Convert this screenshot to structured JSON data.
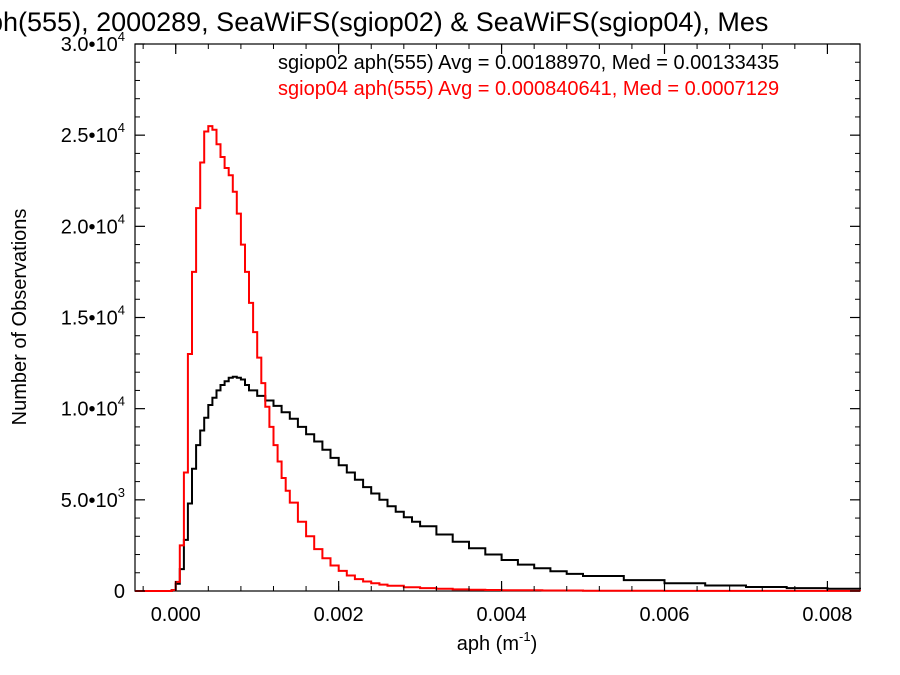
{
  "chart_data": {
    "type": "line",
    "title": "ph(555), 2000289, SeaWiFS(sgiop02) & SeaWiFS(sgiop04), Mes",
    "xlabel": "aph (m",
    "xlabel_sup": "-1",
    "xlabel_suffix": ")",
    "ylabel": "Number of Observations",
    "xlim": [
      -0.0005,
      0.0084
    ],
    "ylim": [
      0,
      30000
    ],
    "grid": false,
    "x_ticks": [
      {
        "value": 0.0,
        "label": "0.000"
      },
      {
        "value": 0.002,
        "label": "0.002"
      },
      {
        "value": 0.004,
        "label": "0.004"
      },
      {
        "value": 0.006,
        "label": "0.006"
      },
      {
        "value": 0.008,
        "label": "0.008"
      }
    ],
    "y_ticks": [
      {
        "value": 0,
        "base": "0",
        "exp": ""
      },
      {
        "value": 5000,
        "base": "5.0•10",
        "exp": "3"
      },
      {
        "value": 10000,
        "base": "1.0•10",
        "exp": "4"
      },
      {
        "value": 15000,
        "base": "1.5•10",
        "exp": "4"
      },
      {
        "value": 20000,
        "base": "2.0•10",
        "exp": "4"
      },
      {
        "value": 25000,
        "base": "2.5•10",
        "exp": "4"
      },
      {
        "value": 30000,
        "base": "3.0•10",
        "exp": "4"
      }
    ],
    "legend": [
      {
        "text": "sgiop02 aph(555) Avg = 0.00188970, Med = 0.00133435",
        "color": "#000000"
      },
      {
        "text": "sgiop04 aph(555) Avg = 0.000840641, Med = 0.0007129",
        "color": "#ff0000"
      }
    ],
    "series": [
      {
        "color": "#000000",
        "x": [
          -0.0005,
          -0.0001,
          -5e-05,
          0.0,
          5e-05,
          0.0001,
          0.00015,
          0.0002,
          0.00025,
          0.0003,
          0.00035,
          0.0004,
          0.00045,
          0.0005,
          0.00055,
          0.0006,
          0.00065,
          0.0007,
          0.00075,
          0.0008,
          0.00085,
          0.0009,
          0.001,
          0.0011,
          0.0012,
          0.0013,
          0.0014,
          0.0015,
          0.0016,
          0.0017,
          0.0018,
          0.0019,
          0.002,
          0.0021,
          0.0022,
          0.0023,
          0.0024,
          0.0025,
          0.0026,
          0.0027,
          0.0028,
          0.0029,
          0.003,
          0.0032,
          0.0034,
          0.0036,
          0.0038,
          0.004,
          0.0042,
          0.0044,
          0.0046,
          0.0048,
          0.005,
          0.0055,
          0.006,
          0.0065,
          0.007,
          0.0075,
          0.008,
          0.0084
        ],
        "y": [
          0,
          0,
          50,
          400,
          1200,
          2800,
          4800,
          6700,
          8000,
          8800,
          9500,
          10200,
          10600,
          11000,
          11300,
          11500,
          11700,
          11750,
          11700,
          11600,
          11300,
          11000,
          10700,
          10450,
          10150,
          9800,
          9450,
          9000,
          8600,
          8200,
          7750,
          7300,
          6900,
          6500,
          6100,
          5700,
          5350,
          5000,
          4650,
          4350,
          4050,
          3800,
          3550,
          3100,
          2700,
          2350,
          2000,
          1700,
          1450,
          1250,
          1080,
          940,
          820,
          600,
          430,
          300,
          220,
          160,
          120,
          100
        ]
      },
      {
        "color": "#ff0000",
        "x": [
          -0.0005,
          -0.0001,
          -5e-05,
          0.0,
          5e-05,
          0.0001,
          0.00015,
          0.0002,
          0.00025,
          0.0003,
          0.00035,
          0.0004,
          0.00045,
          0.0005,
          0.00055,
          0.0006,
          0.00065,
          0.0007,
          0.00075,
          0.0008,
          0.00085,
          0.0009,
          0.00095,
          0.001,
          0.00105,
          0.0011,
          0.00115,
          0.0012,
          0.00125,
          0.0013,
          0.00135,
          0.0014,
          0.0015,
          0.0016,
          0.0017,
          0.0018,
          0.0019,
          0.002,
          0.0021,
          0.0022,
          0.0023,
          0.0024,
          0.0025,
          0.0026,
          0.0028,
          0.003,
          0.0032,
          0.0034,
          0.0036,
          0.0038,
          0.004,
          0.0045,
          0.005,
          0.0055,
          0.006,
          0.0084
        ],
        "y": [
          0,
          0,
          50,
          500,
          2500,
          6500,
          13000,
          17500,
          21000,
          23500,
          25200,
          25500,
          25300,
          24500,
          23800,
          23200,
          22800,
          21900,
          20700,
          19000,
          17500,
          15800,
          14200,
          12800,
          11400,
          10100,
          9000,
          8000,
          7100,
          6200,
          5500,
          4850,
          3800,
          3000,
          2300,
          1800,
          1400,
          1100,
          850,
          650,
          520,
          420,
          350,
          290,
          210,
          160,
          120,
          90,
          70,
          55,
          40,
          25,
          15,
          10,
          5,
          0
        ]
      }
    ]
  }
}
